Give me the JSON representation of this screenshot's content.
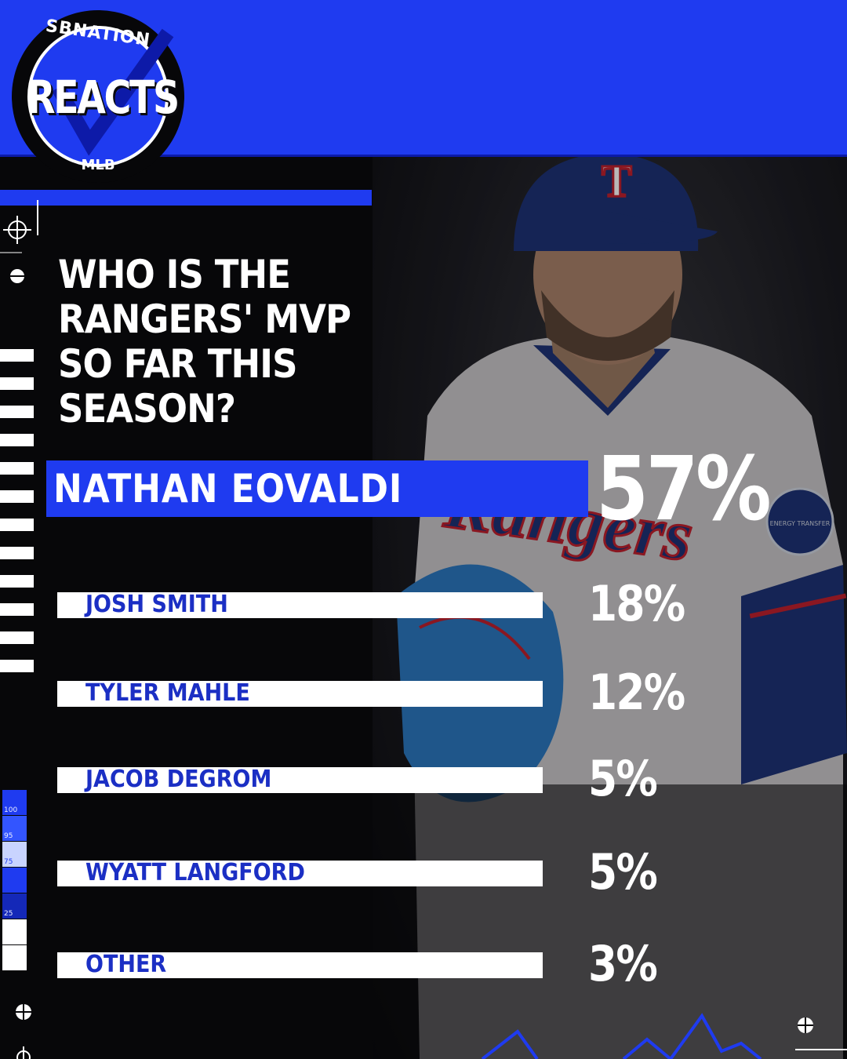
{
  "brand": {
    "top": "SBNATION",
    "main": "REACTS",
    "bottom": "MLB"
  },
  "question": "WHO IS THE RANGERS' MVP SO FAR THIS SEASON?",
  "photo": {
    "cap_letter": "T",
    "jersey_text": "Rangers",
    "patch_text": "ENERGY TRANSFER"
  },
  "colors": {
    "accent": "#1f3bf0",
    "label_text": "#1b2fc4",
    "background": "#070709"
  },
  "chart_data": {
    "type": "bar",
    "orientation": "horizontal",
    "title": "WHO IS THE RANGERS' MVP SO FAR THIS SEASON?",
    "categories": [
      "NATHAN EOVALDI",
      "JOSH SMITH",
      "TYLER MAHLE",
      "JACOB DEGROM",
      "WYATT LANGFORD",
      "OTHER"
    ],
    "values": [
      57,
      18,
      12,
      5,
      5,
      3
    ],
    "value_labels": [
      "57%",
      "18%",
      "12%",
      "5%",
      "5%",
      "3%"
    ],
    "unit": "%",
    "highlighted": "NATHAN EOVALDI"
  },
  "scale_labels": [
    "100",
    "95",
    "75",
    "25"
  ]
}
